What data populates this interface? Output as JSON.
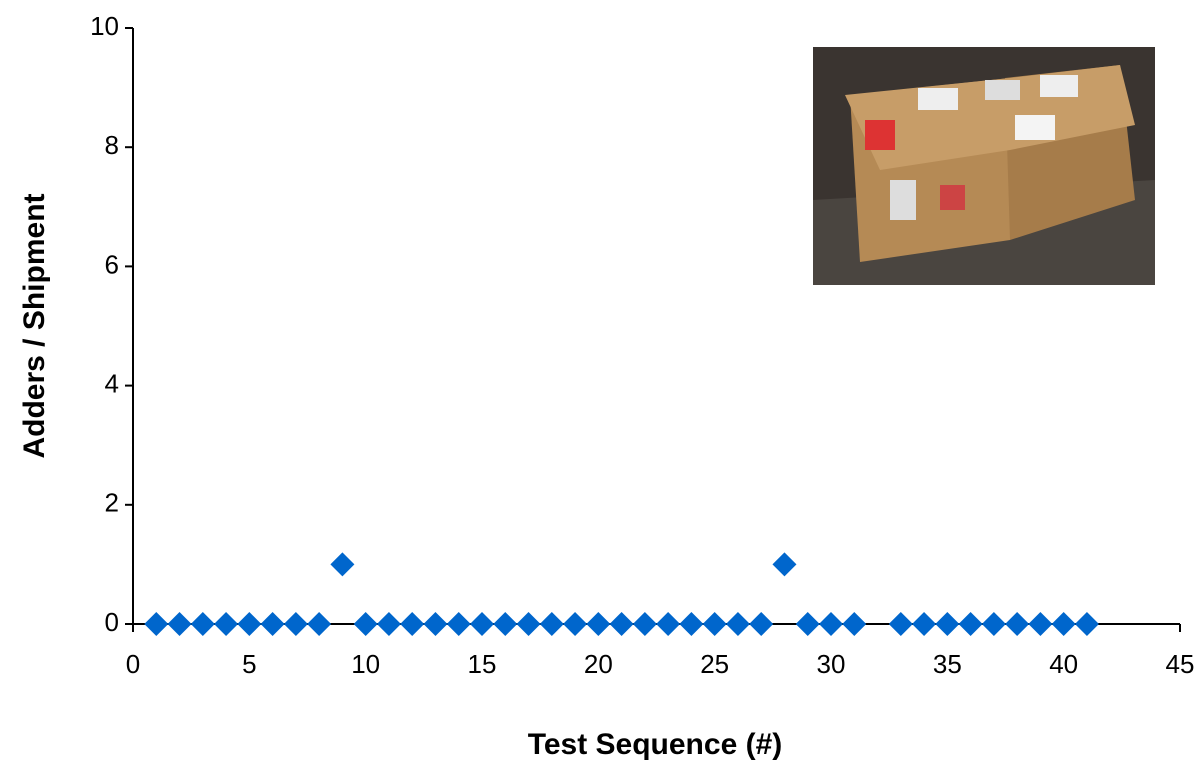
{
  "chart_data": {
    "type": "scatter",
    "x_label": "Test Sequence (#)",
    "y_label": "Adders / Shipment",
    "x": [
      1,
      2,
      3,
      4,
      5,
      6,
      7,
      8,
      9,
      10,
      11,
      12,
      13,
      14,
      15,
      16,
      17,
      18,
      19,
      20,
      21,
      22,
      23,
      24,
      25,
      26,
      27,
      28,
      29,
      30,
      31,
      33,
      34,
      35,
      36,
      37,
      38,
      39,
      40,
      41
    ],
    "values": [
      0,
      0,
      0,
      0,
      0,
      0,
      0,
      0,
      1,
      0,
      0,
      0,
      0,
      0,
      0,
      0,
      0,
      0,
      0,
      0,
      0,
      0,
      0,
      0,
      0,
      0,
      0,
      1,
      0,
      0,
      0,
      0,
      0,
      0,
      0,
      0,
      0,
      0,
      0,
      0
    ],
    "color": "#0066cc",
    "xlim": [
      0,
      45
    ],
    "xticks": [
      0,
      5,
      10,
      15,
      20,
      25,
      30,
      35,
      40,
      45
    ],
    "ylim": [
      0,
      10
    ],
    "yticks": [
      0,
      2,
      4,
      6,
      8,
      10
    ],
    "grid": false
  }
}
